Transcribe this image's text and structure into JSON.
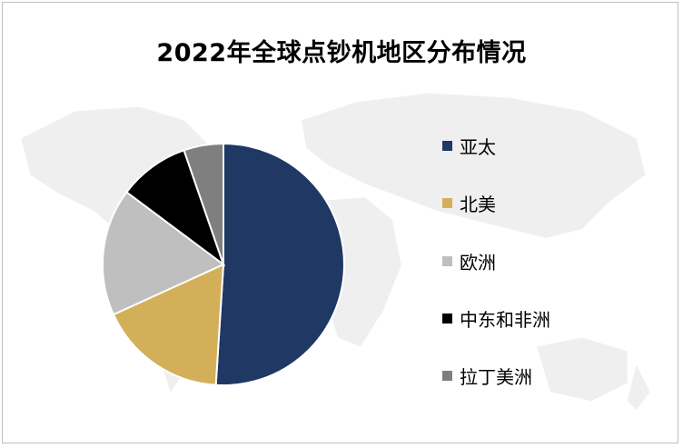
{
  "chart_data": {
    "type": "pie",
    "title": "2022年全球点钞机地区分布情况",
    "categories": [
      "亚太",
      "北美",
      "欧洲",
      "中东和非洲",
      "拉丁美洲"
    ],
    "values": [
      51,
      17.2,
      17,
      9.5,
      5.3
    ],
    "unit": "%",
    "colors": [
      "#1f3864",
      "#d4af5a",
      "#bfbfbf",
      "#000000",
      "#7f7f7f"
    ],
    "start_angle_deg": 0,
    "direction": "clockwise",
    "legend_position": "right",
    "data_labels": false
  },
  "legend": {
    "items": [
      {
        "label": "亚太",
        "color": "#1f3864"
      },
      {
        "label": "北美",
        "color": "#d4af5a"
      },
      {
        "label": "欧洲",
        "color": "#bfbfbf"
      },
      {
        "label": "中东和非洲",
        "color": "#000000"
      },
      {
        "label": "拉丁美洲",
        "color": "#7f7f7f"
      }
    ]
  }
}
